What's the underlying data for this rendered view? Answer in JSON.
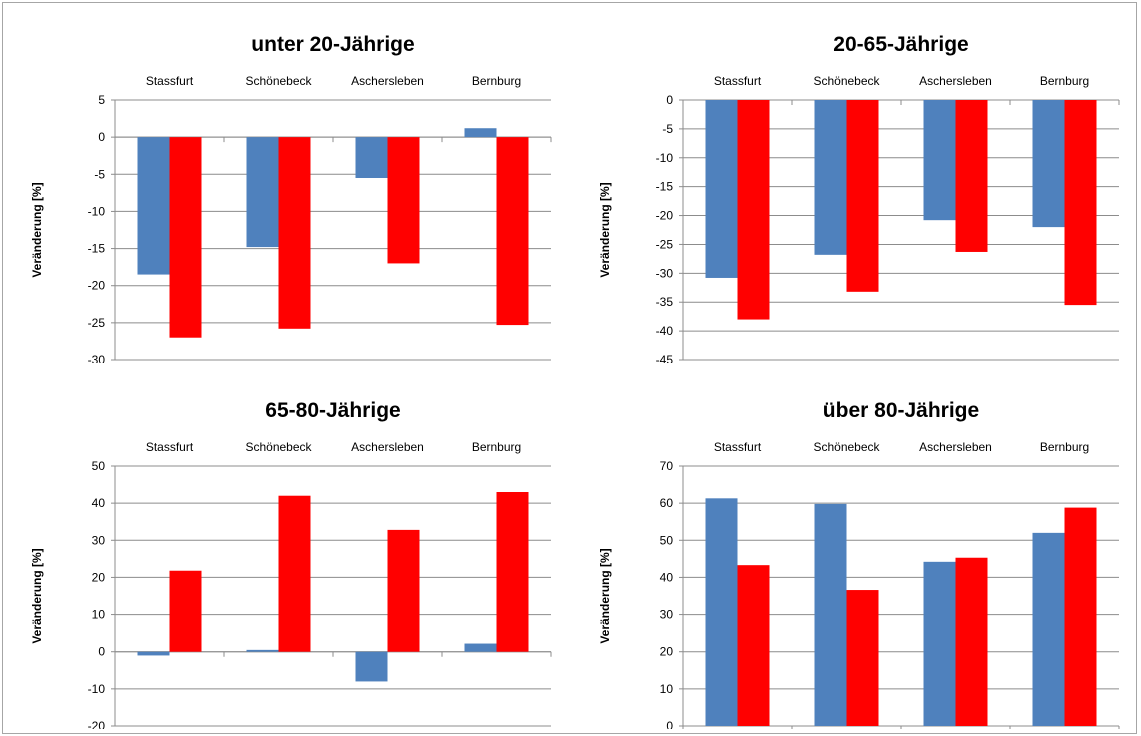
{
  "colors": {
    "series_a": "#4f81bd",
    "series_b": "#ff0000",
    "grid": "#8c8c8c"
  },
  "chart_data": [
    {
      "type": "bar",
      "title": "unter 20-Jährige",
      "ylabel": "Veränderung  [%]",
      "categories": [
        "Stassfurt",
        "Schönebeck",
        "Aschersleben",
        "Bernburg"
      ],
      "series": [
        {
          "values": [
            -18.5,
            -14.8,
            -5.5,
            1.2
          ],
          "color": "#4f81bd"
        },
        {
          "values": [
            -27.0,
            -25.8,
            -17.0,
            -25.3
          ],
          "color": "#ff0000"
        }
      ],
      "ylim": [
        -30,
        5
      ],
      "yticks": [
        5,
        0,
        -5,
        -10,
        -15,
        -20,
        -25,
        -30
      ],
      "grid": true,
      "category_axis": "top"
    },
    {
      "type": "bar",
      "title": "20-65-Jährige",
      "ylabel": "Veränderung [%]",
      "categories": [
        "Stassfurt",
        "Schönebeck",
        "Aschersleben",
        "Bernburg"
      ],
      "series": [
        {
          "values": [
            -30.8,
            -26.8,
            -20.8,
            -22.0
          ],
          "color": "#4f81bd"
        },
        {
          "values": [
            -38.0,
            -33.2,
            -26.3,
            -35.5
          ],
          "color": "#ff0000"
        }
      ],
      "ylim": [
        -45,
        0
      ],
      "yticks": [
        0,
        -5,
        -10,
        -15,
        -20,
        -25,
        -30,
        -35,
        -40,
        -45
      ],
      "grid": true,
      "category_axis": "top"
    },
    {
      "type": "bar",
      "title": "65-80-Jährige",
      "ylabel": "Veränderung [%]",
      "categories": [
        "Stassfurt",
        "Schönebeck",
        "Aschersleben",
        "Bernburg"
      ],
      "series": [
        {
          "values": [
            -1.0,
            0.5,
            -8.0,
            2.2
          ],
          "color": "#4f81bd"
        },
        {
          "values": [
            21.8,
            42.0,
            32.8,
            43.0
          ],
          "color": "#ff0000"
        }
      ],
      "ylim": [
        -20,
        50
      ],
      "yticks": [
        50,
        40,
        30,
        20,
        10,
        0,
        -10,
        -20
      ],
      "grid": true,
      "category_axis": "top"
    },
    {
      "type": "bar",
      "title": "über 80-Jährige",
      "ylabel": "Veränderung [%]",
      "categories": [
        "Stassfurt",
        "Schönebeck",
        "Aschersleben",
        "Bernburg"
      ],
      "series": [
        {
          "values": [
            61.3,
            59.8,
            44.2,
            52.0
          ],
          "color": "#4f81bd"
        },
        {
          "values": [
            43.3,
            36.6,
            45.3,
            58.8
          ],
          "color": "#ff0000"
        }
      ],
      "ylim": [
        0,
        70
      ],
      "yticks": [
        70,
        60,
        50,
        40,
        30,
        20,
        10,
        0
      ],
      "grid": true,
      "category_axis": "top"
    }
  ]
}
